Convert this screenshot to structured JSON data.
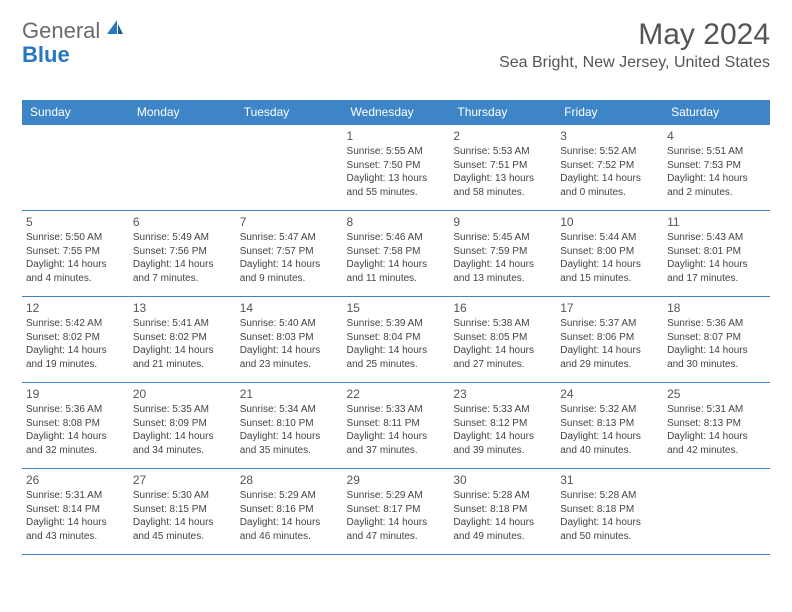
{
  "logo": {
    "part1": "General",
    "part2": "Blue"
  },
  "title": "May 2024",
  "location": "Sea Bright, New Jersey, United States",
  "headers": [
    "Sunday",
    "Monday",
    "Tuesday",
    "Wednesday",
    "Thursday",
    "Friday",
    "Saturday"
  ],
  "colors": {
    "header_bg": "#3d85c6",
    "header_text": "#ffffff",
    "cell_border": "#3d85c6",
    "text": "#444444",
    "title_text": "#555555",
    "logo_gray": "#6a6a6a",
    "logo_blue": "#2a77c0"
  },
  "fonts": {
    "title_size_pt": 22,
    "location_size_pt": 12,
    "header_size_pt": 9,
    "daynum_size_pt": 9,
    "body_size_pt": 7.5
  },
  "weeks": [
    [
      {
        "day": "",
        "sunrise": "",
        "sunset": "",
        "daylight": ""
      },
      {
        "day": "",
        "sunrise": "",
        "sunset": "",
        "daylight": ""
      },
      {
        "day": "",
        "sunrise": "",
        "sunset": "",
        "daylight": ""
      },
      {
        "day": "1",
        "sunrise": "Sunrise: 5:55 AM",
        "sunset": "Sunset: 7:50 PM",
        "daylight": "Daylight: 13 hours and 55 minutes."
      },
      {
        "day": "2",
        "sunrise": "Sunrise: 5:53 AM",
        "sunset": "Sunset: 7:51 PM",
        "daylight": "Daylight: 13 hours and 58 minutes."
      },
      {
        "day": "3",
        "sunrise": "Sunrise: 5:52 AM",
        "sunset": "Sunset: 7:52 PM",
        "daylight": "Daylight: 14 hours and 0 minutes."
      },
      {
        "day": "4",
        "sunrise": "Sunrise: 5:51 AM",
        "sunset": "Sunset: 7:53 PM",
        "daylight": "Daylight: 14 hours and 2 minutes."
      }
    ],
    [
      {
        "day": "5",
        "sunrise": "Sunrise: 5:50 AM",
        "sunset": "Sunset: 7:55 PM",
        "daylight": "Daylight: 14 hours and 4 minutes."
      },
      {
        "day": "6",
        "sunrise": "Sunrise: 5:49 AM",
        "sunset": "Sunset: 7:56 PM",
        "daylight": "Daylight: 14 hours and 7 minutes."
      },
      {
        "day": "7",
        "sunrise": "Sunrise: 5:47 AM",
        "sunset": "Sunset: 7:57 PM",
        "daylight": "Daylight: 14 hours and 9 minutes."
      },
      {
        "day": "8",
        "sunrise": "Sunrise: 5:46 AM",
        "sunset": "Sunset: 7:58 PM",
        "daylight": "Daylight: 14 hours and 11 minutes."
      },
      {
        "day": "9",
        "sunrise": "Sunrise: 5:45 AM",
        "sunset": "Sunset: 7:59 PM",
        "daylight": "Daylight: 14 hours and 13 minutes."
      },
      {
        "day": "10",
        "sunrise": "Sunrise: 5:44 AM",
        "sunset": "Sunset: 8:00 PM",
        "daylight": "Daylight: 14 hours and 15 minutes."
      },
      {
        "day": "11",
        "sunrise": "Sunrise: 5:43 AM",
        "sunset": "Sunset: 8:01 PM",
        "daylight": "Daylight: 14 hours and 17 minutes."
      }
    ],
    [
      {
        "day": "12",
        "sunrise": "Sunrise: 5:42 AM",
        "sunset": "Sunset: 8:02 PM",
        "daylight": "Daylight: 14 hours and 19 minutes."
      },
      {
        "day": "13",
        "sunrise": "Sunrise: 5:41 AM",
        "sunset": "Sunset: 8:02 PM",
        "daylight": "Daylight: 14 hours and 21 minutes."
      },
      {
        "day": "14",
        "sunrise": "Sunrise: 5:40 AM",
        "sunset": "Sunset: 8:03 PM",
        "daylight": "Daylight: 14 hours and 23 minutes."
      },
      {
        "day": "15",
        "sunrise": "Sunrise: 5:39 AM",
        "sunset": "Sunset: 8:04 PM",
        "daylight": "Daylight: 14 hours and 25 minutes."
      },
      {
        "day": "16",
        "sunrise": "Sunrise: 5:38 AM",
        "sunset": "Sunset: 8:05 PM",
        "daylight": "Daylight: 14 hours and 27 minutes."
      },
      {
        "day": "17",
        "sunrise": "Sunrise: 5:37 AM",
        "sunset": "Sunset: 8:06 PM",
        "daylight": "Daylight: 14 hours and 29 minutes."
      },
      {
        "day": "18",
        "sunrise": "Sunrise: 5:36 AM",
        "sunset": "Sunset: 8:07 PM",
        "daylight": "Daylight: 14 hours and 30 minutes."
      }
    ],
    [
      {
        "day": "19",
        "sunrise": "Sunrise: 5:36 AM",
        "sunset": "Sunset: 8:08 PM",
        "daylight": "Daylight: 14 hours and 32 minutes."
      },
      {
        "day": "20",
        "sunrise": "Sunrise: 5:35 AM",
        "sunset": "Sunset: 8:09 PM",
        "daylight": "Daylight: 14 hours and 34 minutes."
      },
      {
        "day": "21",
        "sunrise": "Sunrise: 5:34 AM",
        "sunset": "Sunset: 8:10 PM",
        "daylight": "Daylight: 14 hours and 35 minutes."
      },
      {
        "day": "22",
        "sunrise": "Sunrise: 5:33 AM",
        "sunset": "Sunset: 8:11 PM",
        "daylight": "Daylight: 14 hours and 37 minutes."
      },
      {
        "day": "23",
        "sunrise": "Sunrise: 5:33 AM",
        "sunset": "Sunset: 8:12 PM",
        "daylight": "Daylight: 14 hours and 39 minutes."
      },
      {
        "day": "24",
        "sunrise": "Sunrise: 5:32 AM",
        "sunset": "Sunset: 8:13 PM",
        "daylight": "Daylight: 14 hours and 40 minutes."
      },
      {
        "day": "25",
        "sunrise": "Sunrise: 5:31 AM",
        "sunset": "Sunset: 8:13 PM",
        "daylight": "Daylight: 14 hours and 42 minutes."
      }
    ],
    [
      {
        "day": "26",
        "sunrise": "Sunrise: 5:31 AM",
        "sunset": "Sunset: 8:14 PM",
        "daylight": "Daylight: 14 hours and 43 minutes."
      },
      {
        "day": "27",
        "sunrise": "Sunrise: 5:30 AM",
        "sunset": "Sunset: 8:15 PM",
        "daylight": "Daylight: 14 hours and 45 minutes."
      },
      {
        "day": "28",
        "sunrise": "Sunrise: 5:29 AM",
        "sunset": "Sunset: 8:16 PM",
        "daylight": "Daylight: 14 hours and 46 minutes."
      },
      {
        "day": "29",
        "sunrise": "Sunrise: 5:29 AM",
        "sunset": "Sunset: 8:17 PM",
        "daylight": "Daylight: 14 hours and 47 minutes."
      },
      {
        "day": "30",
        "sunrise": "Sunrise: 5:28 AM",
        "sunset": "Sunset: 8:18 PM",
        "daylight": "Daylight: 14 hours and 49 minutes."
      },
      {
        "day": "31",
        "sunrise": "Sunrise: 5:28 AM",
        "sunset": "Sunset: 8:18 PM",
        "daylight": "Daylight: 14 hours and 50 minutes."
      },
      {
        "day": "",
        "sunrise": "",
        "sunset": "",
        "daylight": ""
      }
    ]
  ]
}
